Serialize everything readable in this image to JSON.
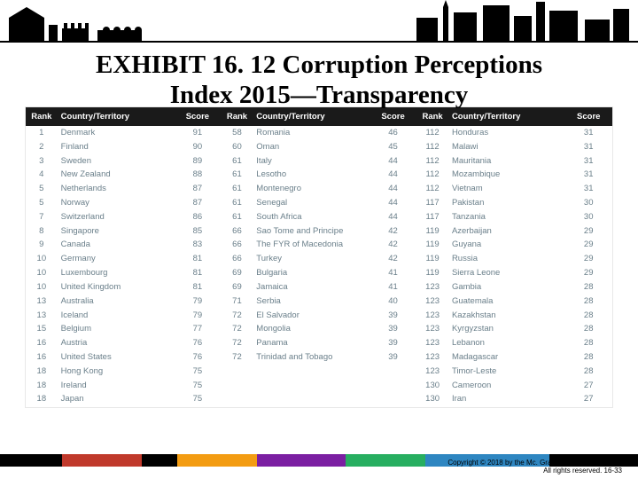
{
  "title_line1": "EXHIBIT 16. 12 Corruption Perceptions",
  "title_line2": "Index 2015—Transparency",
  "headers": {
    "rank": "Rank",
    "country": "Country/Territory",
    "score": "Score"
  },
  "copyright_line1": "Copyright © 2018 by the Mc. Graw-Hill Companies, Inc.",
  "copyright_line2": "All rights reserved. 16-33",
  "band_colors": [
    "#000000",
    "#c0392b",
    "#000000",
    "#f39c12",
    "#7b1fa2",
    "#27ae60",
    "#2e86c1",
    "#000000"
  ],
  "band_widths": [
    70,
    90,
    40,
    90,
    100,
    90,
    140,
    100
  ],
  "sections": [
    [
      {
        "rank": "1",
        "ct": "Denmark",
        "sc": "91"
      },
      {
        "rank": "2",
        "ct": "Finland",
        "sc": "90"
      },
      {
        "rank": "3",
        "ct": "Sweden",
        "sc": "89"
      },
      {
        "rank": "4",
        "ct": "New Zealand",
        "sc": "88"
      },
      {
        "rank": "5",
        "ct": "Netherlands",
        "sc": "87"
      },
      {
        "rank": "5",
        "ct": "Norway",
        "sc": "87"
      },
      {
        "rank": "7",
        "ct": "Switzerland",
        "sc": "86"
      },
      {
        "rank": "8",
        "ct": "Singapore",
        "sc": "85"
      },
      {
        "rank": "9",
        "ct": "Canada",
        "sc": "83"
      },
      {
        "rank": "10",
        "ct": "Germany",
        "sc": "81"
      },
      {
        "rank": "10",
        "ct": "Luxembourg",
        "sc": "81"
      },
      {
        "rank": "10",
        "ct": "United Kingdom",
        "sc": "81"
      },
      {
        "rank": "13",
        "ct": "Australia",
        "sc": "79"
      },
      {
        "rank": "13",
        "ct": "Iceland",
        "sc": "79"
      },
      {
        "rank": "15",
        "ct": "Belgium",
        "sc": "77"
      },
      {
        "rank": "16",
        "ct": "Austria",
        "sc": "76"
      },
      {
        "rank": "16",
        "ct": "United States",
        "sc": "76"
      },
      {
        "rank": "18",
        "ct": "Hong Kong",
        "sc": "75"
      },
      {
        "rank": "18",
        "ct": "Ireland",
        "sc": "75"
      },
      {
        "rank": "18",
        "ct": "Japan",
        "sc": "75"
      }
    ],
    [
      {
        "rank": "58",
        "ct": "Romania",
        "sc": "46"
      },
      {
        "rank": "60",
        "ct": "Oman",
        "sc": "45"
      },
      {
        "rank": "61",
        "ct": "Italy",
        "sc": "44"
      },
      {
        "rank": "61",
        "ct": "Lesotho",
        "sc": "44"
      },
      {
        "rank": "61",
        "ct": "Montenegro",
        "sc": "44"
      },
      {
        "rank": "61",
        "ct": "Senegal",
        "sc": "44"
      },
      {
        "rank": "61",
        "ct": "South Africa",
        "sc": "44"
      },
      {
        "rank": "66",
        "ct": "Sao Tome and Principe",
        "sc": "42"
      },
      {
        "rank": "66",
        "ct": "The FYR of Macedonia",
        "sc": "42"
      },
      {
        "rank": "66",
        "ct": "Turkey",
        "sc": "42"
      },
      {
        "rank": "69",
        "ct": "Bulgaria",
        "sc": "41"
      },
      {
        "rank": "69",
        "ct": "Jamaica",
        "sc": "41"
      },
      {
        "rank": "71",
        "ct": "Serbia",
        "sc": "40"
      },
      {
        "rank": "72",
        "ct": "El Salvador",
        "sc": "39"
      },
      {
        "rank": "72",
        "ct": "Mongolia",
        "sc": "39"
      },
      {
        "rank": "72",
        "ct": "Panama",
        "sc": "39"
      },
      {
        "rank": "72",
        "ct": "Trinidad and Tobago",
        "sc": "39"
      }
    ],
    [
      {
        "rank": "112",
        "ct": "Honduras",
        "sc": "31"
      },
      {
        "rank": "112",
        "ct": "Malawi",
        "sc": "31"
      },
      {
        "rank": "112",
        "ct": "Mauritania",
        "sc": "31"
      },
      {
        "rank": "112",
        "ct": "Mozambique",
        "sc": "31"
      },
      {
        "rank": "112",
        "ct": "Vietnam",
        "sc": "31"
      },
      {
        "rank": "117",
        "ct": "Pakistan",
        "sc": "30"
      },
      {
        "rank": "117",
        "ct": "Tanzania",
        "sc": "30"
      },
      {
        "rank": "119",
        "ct": "Azerbaijan",
        "sc": "29"
      },
      {
        "rank": "119",
        "ct": "Guyana",
        "sc": "29"
      },
      {
        "rank": "119",
        "ct": "Russia",
        "sc": "29"
      },
      {
        "rank": "119",
        "ct": "Sierra Leone",
        "sc": "29"
      },
      {
        "rank": "123",
        "ct": "Gambia",
        "sc": "28"
      },
      {
        "rank": "123",
        "ct": "Guatemala",
        "sc": "28"
      },
      {
        "rank": "123",
        "ct": "Kazakhstan",
        "sc": "28"
      },
      {
        "rank": "123",
        "ct": "Kyrgyzstan",
        "sc": "28"
      },
      {
        "rank": "123",
        "ct": "Lebanon",
        "sc": "28"
      },
      {
        "rank": "123",
        "ct": "Madagascar",
        "sc": "28"
      },
      {
        "rank": "123",
        "ct": "Timor-Leste",
        "sc": "28"
      },
      {
        "rank": "130",
        "ct": "Cameroon",
        "sc": "27"
      },
      {
        "rank": "130",
        "ct": "Iran",
        "sc": "27"
      }
    ]
  ]
}
